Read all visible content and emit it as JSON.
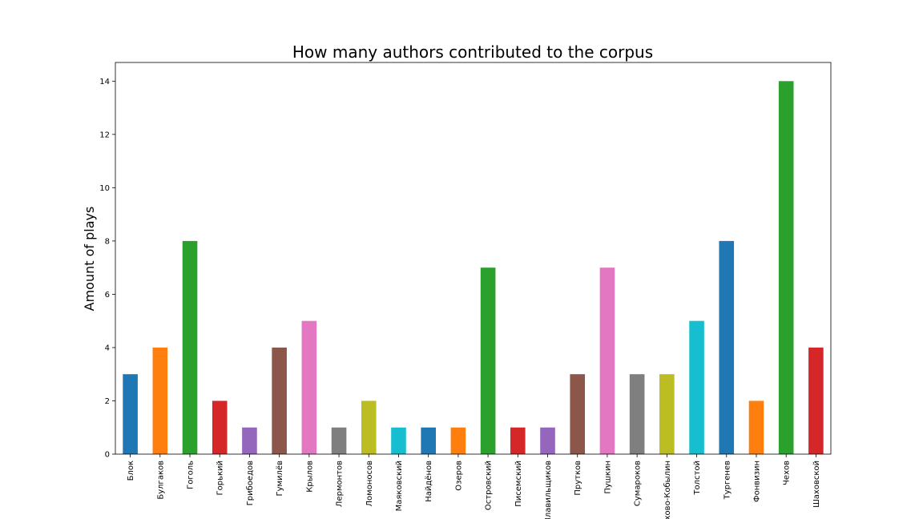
{
  "chart_data": {
    "type": "bar",
    "title": "How many authors contributed to the corpus",
    "xlabel": "",
    "ylabel": "Amount of plays",
    "ylim": [
      0,
      14.7
    ],
    "yticks": [
      0,
      2,
      4,
      6,
      8,
      10,
      12,
      14
    ],
    "grid": false,
    "categories": [
      "Блок",
      "Булгаков",
      "Гоголь",
      "Горький",
      "Грибоедов",
      "Гумилёв",
      "Крылов",
      "Лермонтов",
      "Ломоносов",
      "Маяковский",
      "Найдёнов",
      "Озеров",
      "Островский",
      "Писемский",
      "Плавильщиков",
      "Прутков",
      "Пушкин",
      "Сумароков",
      "Сухово-Кобылин",
      "Толстой",
      "Тургенев",
      "Фонвизин",
      "Чехов",
      "Шаховской"
    ],
    "values": [
      3,
      4,
      8,
      2,
      1,
      4,
      5,
      1,
      2,
      1,
      1,
      1,
      7,
      1,
      1,
      3,
      7,
      3,
      3,
      5,
      8,
      2,
      14,
      4
    ],
    "colors": [
      "#1f77b4",
      "#ff7f0e",
      "#2ca02c",
      "#d62728",
      "#9467bd",
      "#8c564b",
      "#e377c2",
      "#7f7f7f",
      "#bcbd22",
      "#17becf"
    ]
  }
}
